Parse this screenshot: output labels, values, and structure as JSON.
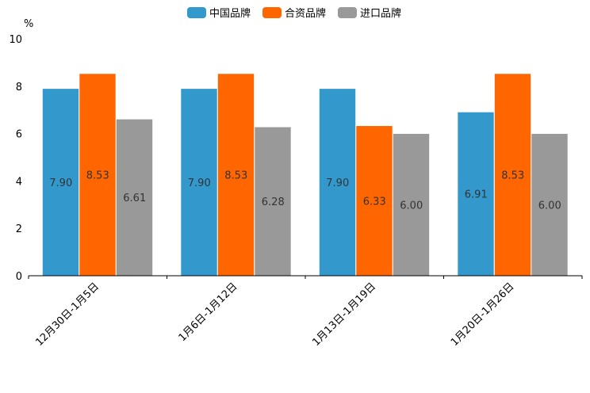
{
  "chart_data": {
    "type": "bar",
    "unit_label": "%",
    "categories": [
      "12月30日-1月5日",
      "1月6日-1月12日",
      "1月13日-1月19日",
      "1月20日-1月26日"
    ],
    "series": [
      {
        "name": "中国品牌",
        "color": "#3399cc",
        "values": [
          7.9,
          7.9,
          7.9,
          6.91
        ]
      },
      {
        "name": "合资品牌",
        "color": "#ff6600",
        "values": [
          8.53,
          8.53,
          6.33,
          8.53
        ]
      },
      {
        "name": "进口品牌",
        "color": "#999999",
        "values": [
          6.61,
          6.28,
          6.0,
          6.0
        ]
      }
    ],
    "ylim": [
      0,
      10
    ],
    "yticks": [
      0,
      2,
      4,
      6,
      8,
      10
    ],
    "legend_position": "top-center",
    "grid": false
  }
}
